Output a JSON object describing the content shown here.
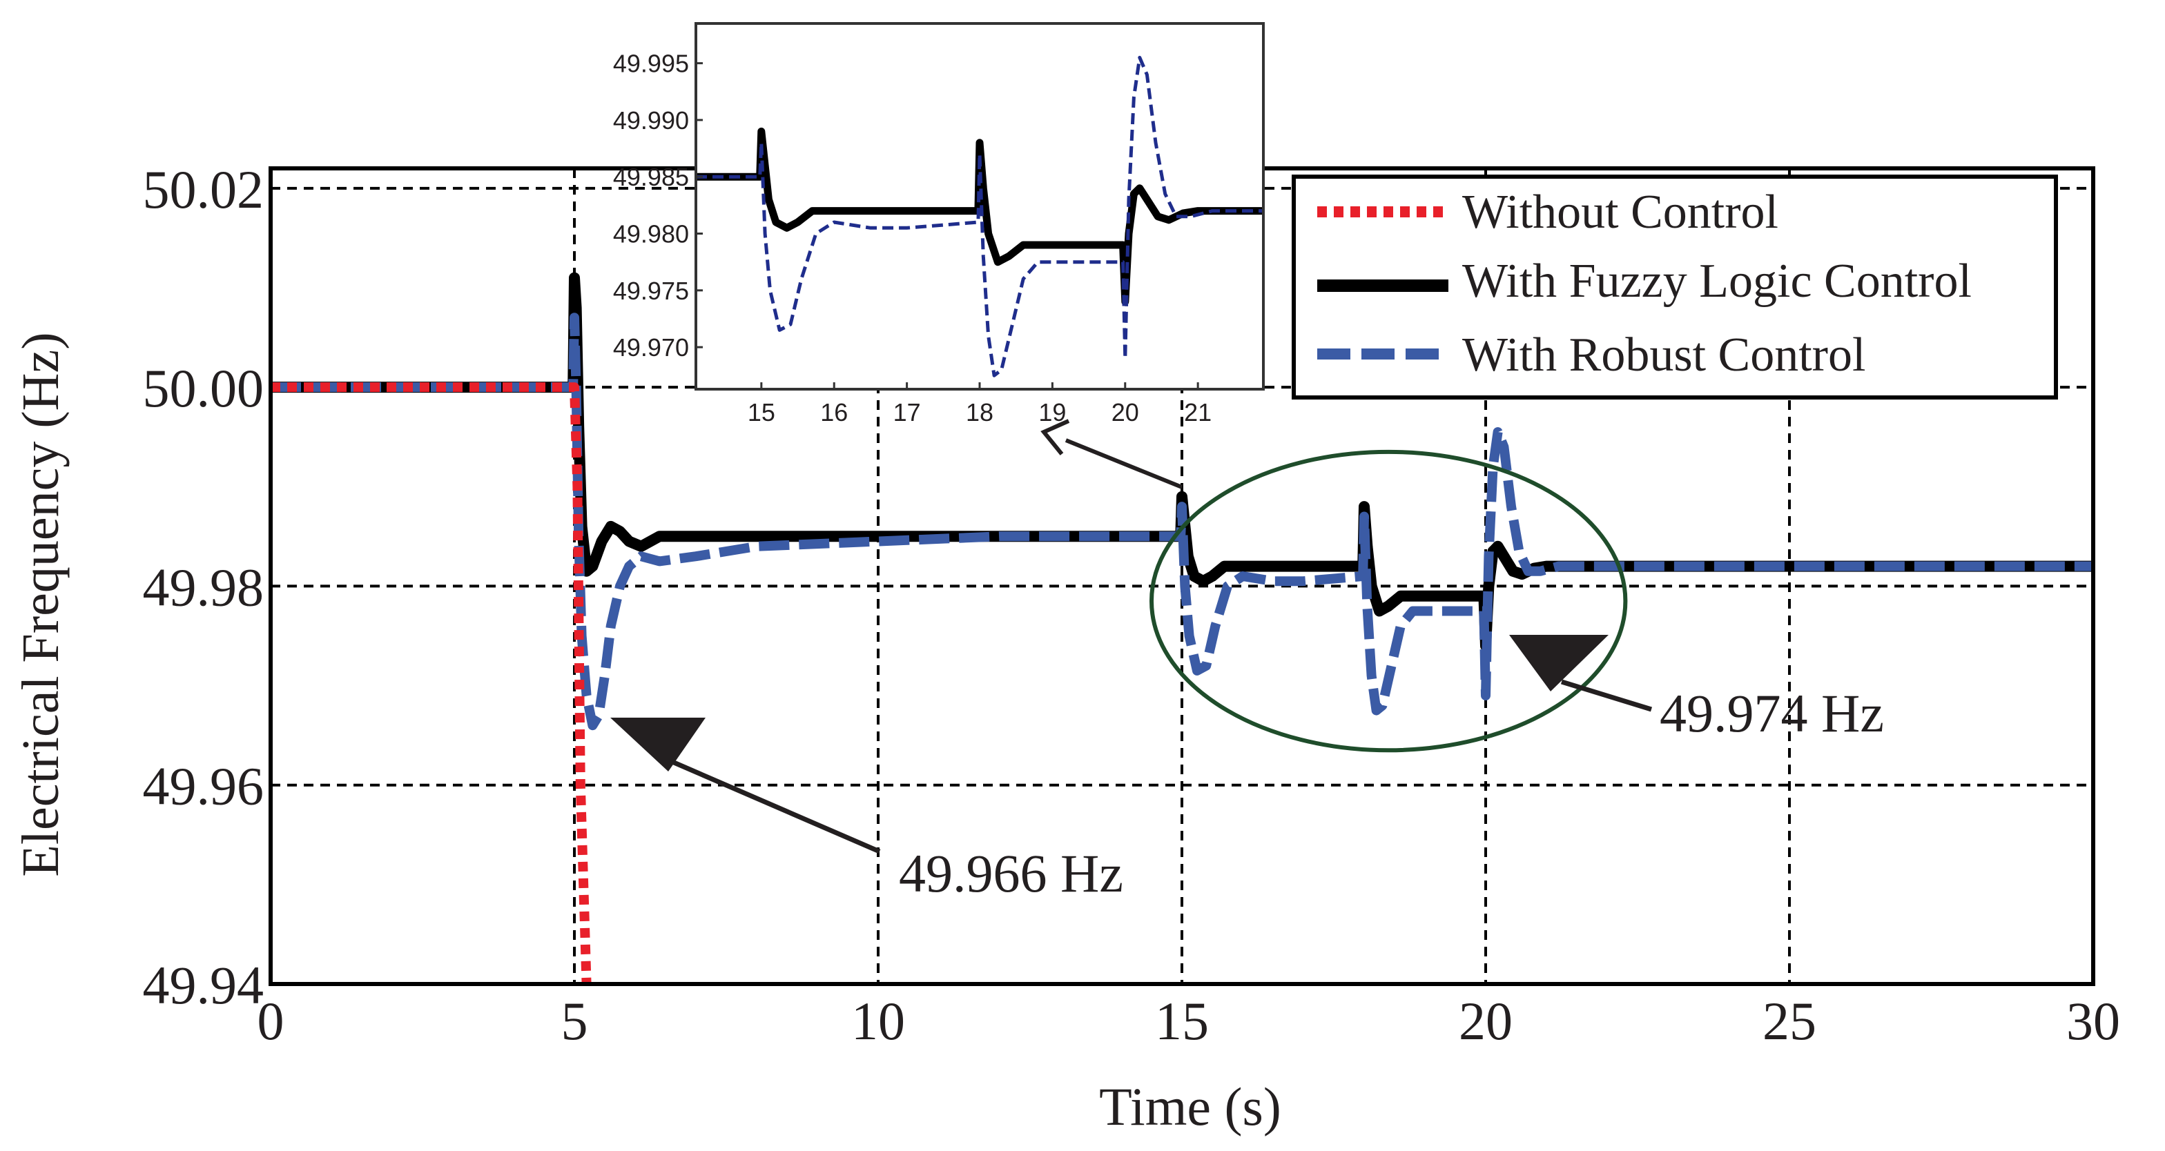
{
  "chart_data": [
    {
      "type": "line",
      "title": "",
      "xlabel": "Time (s)",
      "ylabel": "Electrical Frequency (Hz)",
      "xlim": [
        0,
        30
      ],
      "ylim": [
        49.94,
        50.022
      ],
      "xticks": [
        0,
        5,
        10,
        15,
        20,
        25,
        30
      ],
      "xtick_labels": [
        "0",
        "5",
        "10",
        "15",
        "20",
        "25",
        "30"
      ],
      "yticks": [
        49.94,
        49.96,
        49.98,
        50.0,
        50.02
      ],
      "ytick_labels": [
        "49.94",
        "49.96",
        "49.98",
        "50.00",
        "50.02"
      ],
      "grid": "dashed",
      "legend_position": "top-right",
      "series": [
        {
          "name": "Without Control",
          "color": "#e8202a",
          "style": "dotted",
          "x": [
            0,
            5.0,
            5.05,
            5.1,
            5.2
          ],
          "y": [
            50.0,
            50.0,
            49.99,
            49.96,
            49.94
          ]
        },
        {
          "name": "With Fuzzy Logic Control",
          "color": "#000000",
          "style": "solid",
          "x": [
            0,
            4.98,
            5.0,
            5.03,
            5.07,
            5.12,
            5.2,
            5.3,
            5.45,
            5.6,
            5.75,
            5.9,
            6.1,
            6.4,
            7,
            8,
            10,
            12,
            14,
            14.98,
            15.0,
            15.05,
            15.1,
            15.2,
            15.35,
            15.5,
            15.7,
            16,
            17,
            17.98,
            18.0,
            18.05,
            18.12,
            18.25,
            18.4,
            18.6,
            18.9,
            19.3,
            19.97,
            20.0,
            20.05,
            20.12,
            20.2,
            20.3,
            20.45,
            20.6,
            20.8,
            21,
            21.5,
            22,
            24,
            26,
            28,
            30
          ],
          "y": [
            50.0,
            50.0,
            50.011,
            50.008,
            49.996,
            49.986,
            49.9815,
            49.982,
            49.9845,
            49.986,
            49.9855,
            49.9845,
            49.984,
            49.985,
            49.985,
            49.985,
            49.985,
            49.985,
            49.985,
            49.985,
            49.989,
            49.986,
            49.983,
            49.981,
            49.9805,
            49.981,
            49.982,
            49.982,
            49.982,
            49.982,
            49.988,
            49.984,
            49.98,
            49.9775,
            49.978,
            49.979,
            49.979,
            49.979,
            49.979,
            49.974,
            49.98,
            49.9835,
            49.984,
            49.983,
            49.9815,
            49.9812,
            49.9818,
            49.982,
            49.982,
            49.982,
            49.982,
            49.982,
            49.982,
            49.982
          ]
        },
        {
          "name": "With Robust Control",
          "color": "#3b5ba5",
          "style": "dashed",
          "x": [
            0,
            4.98,
            5.0,
            5.03,
            5.07,
            5.12,
            5.2,
            5.3,
            5.4,
            5.5,
            5.6,
            5.75,
            5.9,
            6.1,
            6.4,
            7,
            8,
            10,
            12,
            14,
            14.98,
            15.0,
            15.05,
            15.12,
            15.25,
            15.4,
            15.55,
            15.75,
            16,
            16.5,
            17,
            17.98,
            18.0,
            18.05,
            18.12,
            18.2,
            18.3,
            18.45,
            18.6,
            18.8,
            19,
            19.5,
            19.97,
            20.0,
            20.05,
            20.12,
            20.2,
            20.3,
            20.42,
            20.55,
            20.7,
            20.9,
            21.2,
            21.6,
            22,
            24,
            26,
            28,
            30
          ],
          "y": [
            50.0,
            50.0,
            50.007,
            50.0,
            49.985,
            49.975,
            49.969,
            49.966,
            49.967,
            49.971,
            49.976,
            49.98,
            49.982,
            49.983,
            49.9825,
            49.983,
            49.984,
            49.9845,
            49.985,
            49.985,
            49.985,
            49.988,
            49.98,
            49.975,
            49.9715,
            49.972,
            49.976,
            49.98,
            49.981,
            49.9805,
            49.9805,
            49.981,
            49.987,
            49.978,
            49.971,
            49.9675,
            49.968,
            49.972,
            49.976,
            49.9775,
            49.9775,
            49.9775,
            49.9775,
            49.969,
            49.983,
            49.992,
            49.9955,
            49.994,
            49.988,
            49.9835,
            49.9815,
            49.9815,
            49.982,
            49.982,
            49.982,
            49.982,
            49.982,
            49.982,
            49.982
          ]
        }
      ],
      "annotations": [
        {
          "text": "49.966 Hz",
          "points_to": [
            5.3,
            49.966
          ]
        },
        {
          "text": "49.974 Hz",
          "points_to": [
            20.1,
            49.974
          ]
        }
      ],
      "highlight": {
        "shape": "ellipse",
        "color": "#1f4d2b",
        "x_range": [
          14.5,
          22.3
        ],
        "y_range": [
          49.9635,
          49.9935
        ]
      }
    },
    {
      "type": "line",
      "title": "",
      "role": "inset zoom of 14–22 s",
      "xlim": [
        14.1,
        21.9
      ],
      "ylim": [
        49.9663,
        49.9985
      ],
      "xticks": [
        15,
        16,
        17,
        18,
        19,
        20,
        21
      ],
      "xtick_labels": [
        "15",
        "16",
        "17",
        "18",
        "19",
        "20",
        "21"
      ],
      "yticks": [
        49.97,
        49.975,
        49.98,
        49.985,
        49.99,
        49.995
      ],
      "ytick_labels": [
        "49.970",
        "49.975",
        "49.980",
        "49.985",
        "49.990",
        "49.995"
      ],
      "series": [
        {
          "name": "With Fuzzy Logic Control",
          "color": "#000000",
          "x": [
            14.1,
            14.98,
            15.0,
            15.05,
            15.1,
            15.2,
            15.35,
            15.5,
            15.7,
            16,
            17,
            17.98,
            18.0,
            18.05,
            18.12,
            18.25,
            18.4,
            18.6,
            18.9,
            19.3,
            19.97,
            20.0,
            20.05,
            20.12,
            20.2,
            20.3,
            20.45,
            20.6,
            20.8,
            21,
            21.5,
            21.9
          ],
          "y": [
            49.985,
            49.985,
            49.989,
            49.986,
            49.983,
            49.981,
            49.9805,
            49.981,
            49.982,
            49.982,
            49.982,
            49.982,
            49.988,
            49.984,
            49.98,
            49.9775,
            49.978,
            49.979,
            49.979,
            49.979,
            49.979,
            49.974,
            49.98,
            49.9835,
            49.984,
            49.983,
            49.9815,
            49.9812,
            49.9818,
            49.982,
            49.982,
            49.982
          ]
        },
        {
          "name": "With Robust Control",
          "color": "#1f2d8c",
          "x": [
            14.1,
            14.98,
            15.0,
            15.05,
            15.12,
            15.25,
            15.4,
            15.55,
            15.75,
            16,
            16.5,
            17,
            17.98,
            18.0,
            18.05,
            18.12,
            18.2,
            18.3,
            18.45,
            18.6,
            18.8,
            19,
            19.5,
            19.97,
            20.0,
            20.05,
            20.12,
            20.2,
            20.3,
            20.42,
            20.55,
            20.7,
            20.9,
            21.2,
            21.6,
            21.9
          ],
          "y": [
            49.985,
            49.985,
            49.988,
            49.98,
            49.975,
            49.9715,
            49.972,
            49.976,
            49.98,
            49.981,
            49.9805,
            49.9805,
            49.981,
            49.987,
            49.978,
            49.971,
            49.9675,
            49.968,
            49.972,
            49.976,
            49.9775,
            49.9775,
            49.9775,
            49.9775,
            49.969,
            49.983,
            49.992,
            49.9955,
            49.994,
            49.988,
            49.9835,
            49.9815,
            49.9815,
            49.982,
            49.982,
            49.982
          ]
        }
      ]
    }
  ]
}
